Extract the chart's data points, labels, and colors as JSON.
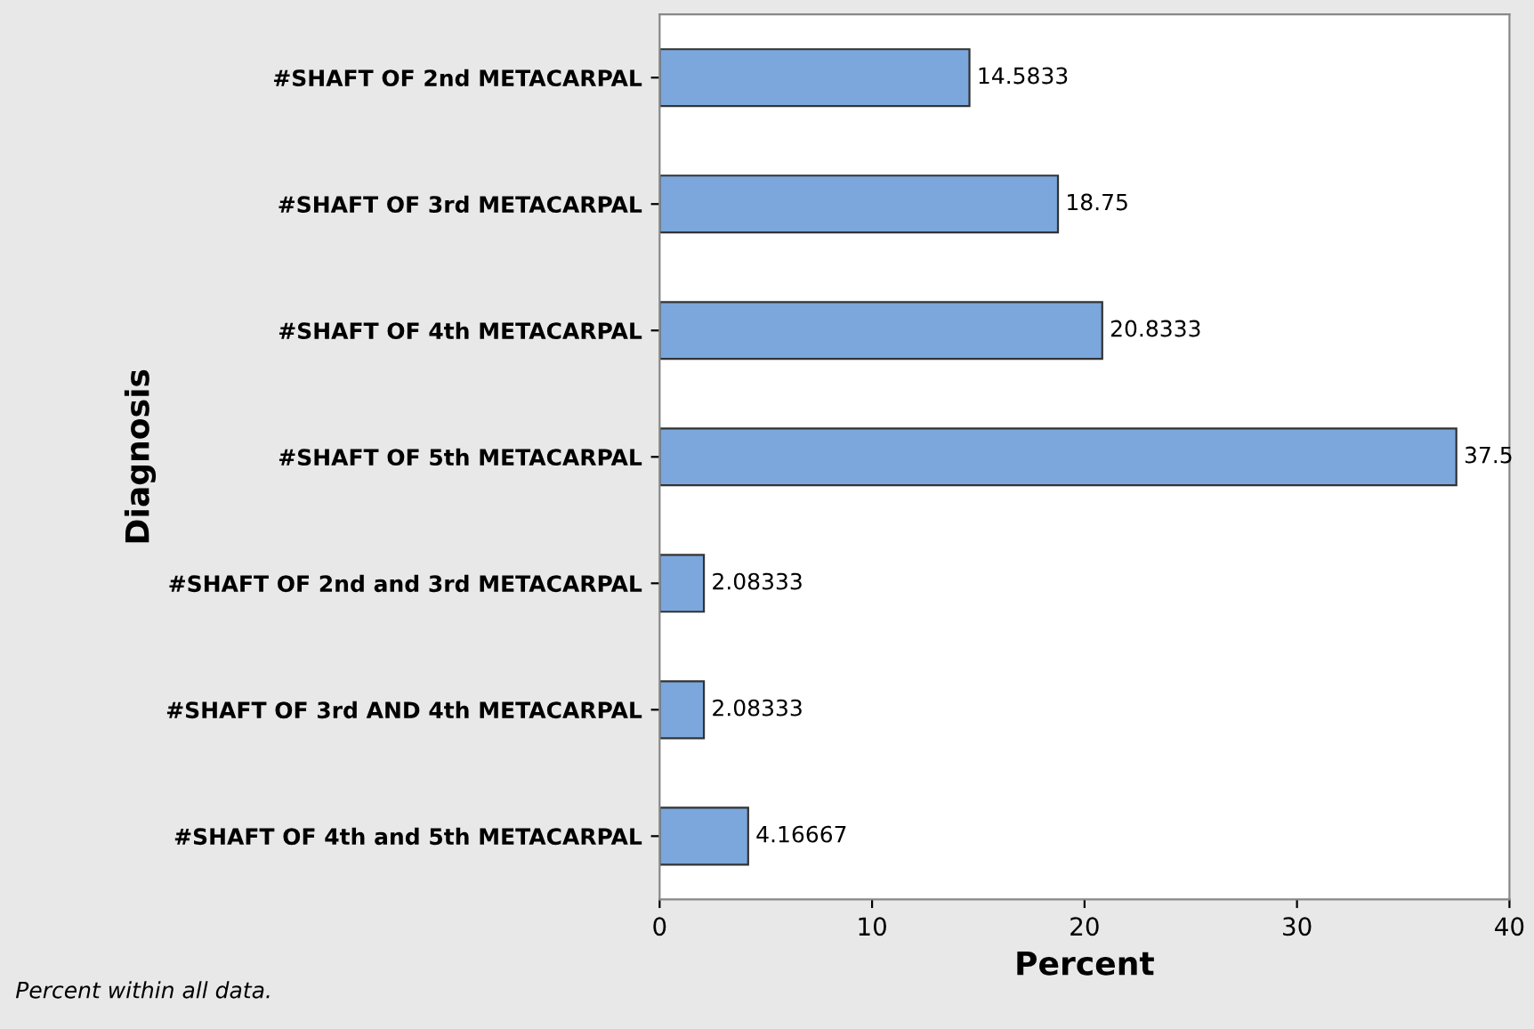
{
  "chart_data": {
    "type": "bar",
    "orientation": "horizontal",
    "categories": [
      "#SHAFT OF 2nd METACARPAL",
      "#SHAFT OF 3rd METACARPAL",
      "#SHAFT OF 4th METACARPAL",
      "#SHAFT OF 5th METACARPAL",
      "#SHAFT OF 2nd and 3rd METACARPAL",
      "#SHAFT OF 3rd AND 4th METACARPAL",
      "#SHAFT OF 4th and 5th METACARPAL"
    ],
    "values": [
      14.5833,
      18.75,
      20.8333,
      37.5,
      2.08333,
      2.08333,
      4.16667
    ],
    "color": "#7ba7dc",
    "data_labels": true,
    "xlim": [
      0,
      40
    ],
    "xticks": [
      0,
      10,
      20,
      30,
      40
    ],
    "xlabel": "Percent",
    "ylabel": "Diagnosis",
    "annotations": [
      "Percent within all data."
    ],
    "grid": false
  }
}
